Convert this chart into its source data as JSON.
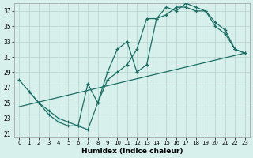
{
  "xlabel": "Humidex (Indice chaleur)",
  "bg_color": "#d8f0ec",
  "grid_color": "#b8d8d0",
  "line_color": "#1a6e64",
  "xlim": [
    -0.5,
    23.5
  ],
  "ylim": [
    20.5,
    38.0
  ],
  "xticks": [
    0,
    1,
    2,
    3,
    4,
    5,
    6,
    7,
    8,
    9,
    10,
    11,
    12,
    13,
    14,
    15,
    16,
    17,
    18,
    19,
    20,
    21,
    22,
    23
  ],
  "yticks": [
    21,
    23,
    25,
    27,
    29,
    31,
    33,
    35,
    37
  ],
  "line1_x": [
    0,
    1,
    2,
    3,
    4,
    5,
    6,
    7,
    8,
    9,
    10,
    11,
    12,
    13,
    14,
    15,
    16,
    17,
    18,
    19,
    20,
    21,
    22,
    23
  ],
  "line1_y": [
    28,
    26.5,
    25,
    24,
    23,
    22.5,
    22,
    21.5,
    25,
    28,
    29,
    30,
    32,
    36,
    36,
    36.5,
    37.5,
    37.5,
    37,
    37,
    35,
    34,
    32,
    31.5
  ],
  "line2_x": [
    1,
    2,
    3,
    4,
    5,
    6,
    7,
    8,
    9,
    10,
    11,
    12,
    13,
    14,
    15,
    16,
    17,
    18,
    19,
    20,
    21,
    22,
    23
  ],
  "line2_y": [
    26.5,
    25,
    23.5,
    22.5,
    22,
    22,
    27.5,
    25,
    29,
    32,
    33,
    29,
    30,
    36,
    37.5,
    37,
    38,
    37.5,
    37,
    35.5,
    34.5,
    32,
    31.5
  ],
  "line3_x": [
    0,
    23
  ],
  "line3_y": [
    24.5,
    31.5
  ]
}
